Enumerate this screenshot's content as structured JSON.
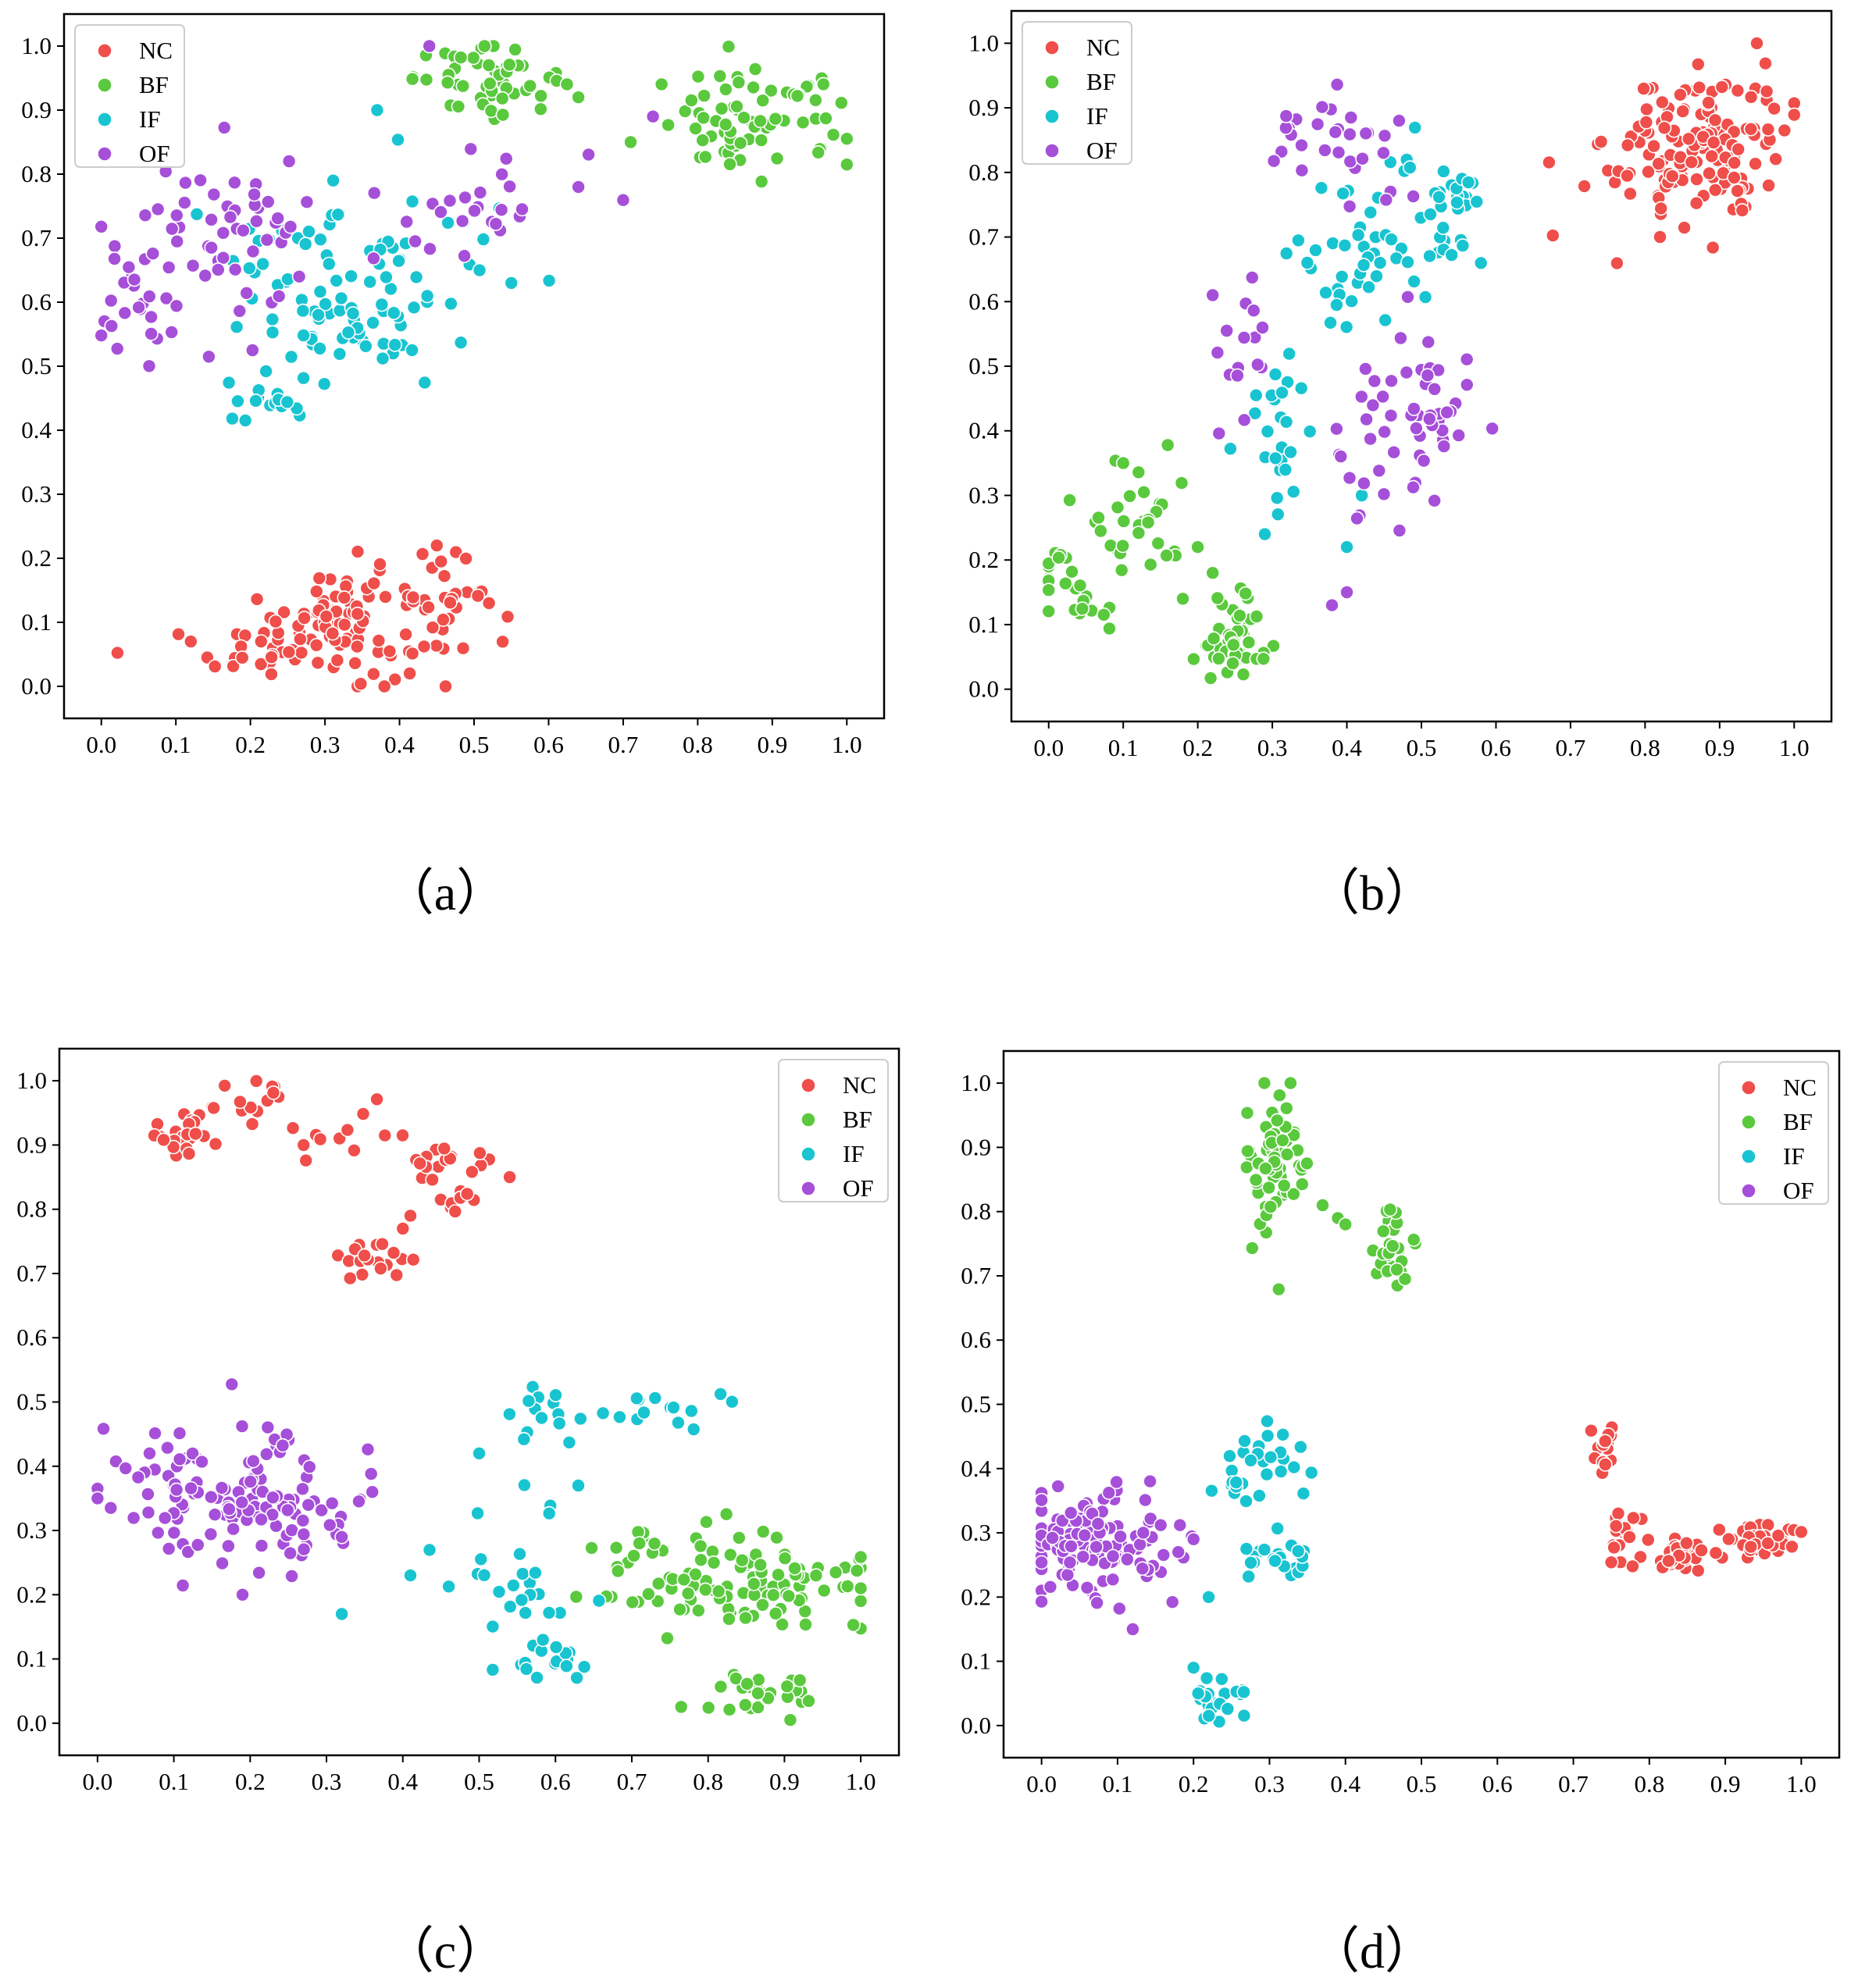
{
  "colors": {
    "NC": "#ef4e4a",
    "BF": "#5ac93d",
    "IF": "#19c4d1",
    "OF": "#a64fd9"
  },
  "chart_data": [
    {
      "id": "a",
      "type": "scatter",
      "caption": "（a）",
      "legend_position": "top-left",
      "xlim": [
        -0.05,
        1.05
      ],
      "ylim": [
        -0.05,
        1.05
      ],
      "xticks": [
        "0.0",
        "0.1",
        "0.2",
        "0.3",
        "0.4",
        "0.5",
        "0.6",
        "0.7",
        "0.8",
        "0.9",
        "1.0"
      ],
      "yticks": [
        "0.0",
        "0.1",
        "0.2",
        "0.3",
        "0.4",
        "0.5",
        "0.6",
        "0.7",
        "0.8",
        "0.9",
        "1.0"
      ],
      "legend": [
        "NC",
        "BF",
        "IF",
        "OF"
      ],
      "series": [
        {
          "name": "NC",
          "clusters": [
            {
              "cx": 0.32,
              "cy": 0.1,
              "sx": 0.09,
              "sy": 0.05,
              "n": 130,
              "rot": 0.35
            },
            {
              "cx": 0.48,
              "cy": 0.13,
              "sx": 0.03,
              "sy": 0.02,
              "n": 10
            }
          ],
          "x": [
            0.12,
            0.52,
            0.45
          ],
          "y": [
            0.07,
            0.13,
            0.22
          ]
        },
        {
          "name": "BF",
          "clusters": [
            {
              "cx": 0.52,
              "cy": 0.95,
              "sx": 0.05,
              "sy": 0.025,
              "n": 50
            },
            {
              "cx": 0.88,
              "cy": 0.88,
              "sx": 0.07,
              "sy": 0.04,
              "n": 70
            }
          ],
          "x": [
            0.71,
            0.64
          ],
          "y": [
            0.85,
            0.92
          ]
        },
        {
          "name": "IF",
          "clusters": [
            {
              "cx": 0.34,
              "cy": 0.63,
              "sx": 0.1,
              "sy": 0.1,
              "n": 100,
              "rot": 0.8
            },
            {
              "cx": 0.22,
              "cy": 0.45,
              "sx": 0.03,
              "sy": 0.02,
              "n": 15
            }
          ],
          "x": [
            0.37,
            0.55
          ],
          "y": [
            0.9,
            0.63
          ]
        },
        {
          "name": "OF",
          "clusters": [
            {
              "cx": 0.03,
              "cy": 0.56,
              "sx": 0.03,
              "sy": 0.03,
              "n": 12
            },
            {
              "cx": 0.15,
              "cy": 0.68,
              "sx": 0.08,
              "sy": 0.08,
              "n": 70
            },
            {
              "cx": 0.5,
              "cy": 0.75,
              "sx": 0.08,
              "sy": 0.06,
              "n": 25
            }
          ],
          "x": [
            0.44,
            0.74,
            0.64
          ],
          "y": [
            1.0,
            0.89,
            0.78
          ]
        }
      ]
    },
    {
      "id": "b",
      "type": "scatter",
      "caption": "（b）",
      "legend_position": "top-left",
      "xlim": [
        -0.05,
        1.05
      ],
      "ylim": [
        -0.05,
        1.05
      ],
      "xticks": [
        "0.0",
        "0.1",
        "0.2",
        "0.3",
        "0.4",
        "0.5",
        "0.6",
        "0.7",
        "0.8",
        "0.9",
        "1.0"
      ],
      "yticks": [
        "0.0",
        "0.1",
        "0.2",
        "0.3",
        "0.4",
        "0.5",
        "0.6",
        "0.7",
        "0.8",
        "0.9",
        "1.0"
      ],
      "legend": [
        "NC",
        "BF",
        "IF",
        "OF"
      ],
      "series": [
        {
          "name": "NC",
          "clusters": [
            {
              "cx": 0.87,
              "cy": 0.84,
              "sx": 0.06,
              "sy": 0.06,
              "n": 150
            }
          ],
          "x": [
            0.95,
            0.82
          ],
          "y": [
            1.0,
            0.7
          ]
        },
        {
          "name": "BF",
          "clusters": [
            {
              "cx": 0.03,
              "cy": 0.16,
              "sx": 0.03,
              "sy": 0.04,
              "n": 25
            },
            {
              "cx": 0.11,
              "cy": 0.27,
              "sx": 0.04,
              "sy": 0.04,
              "n": 30
            },
            {
              "cx": 0.25,
              "cy": 0.08,
              "sx": 0.025,
              "sy": 0.04,
              "n": 50
            }
          ],
          "x": [
            0.18,
            0.2,
            0.22,
            0.1
          ],
          "y": [
            0.14,
            0.22,
            0.18,
            0.35
          ]
        },
        {
          "name": "IF",
          "clusters": [
            {
              "cx": 0.31,
              "cy": 0.38,
              "sx": 0.03,
              "sy": 0.07,
              "n": 25
            },
            {
              "cx": 0.4,
              "cy": 0.67,
              "sx": 0.04,
              "sy": 0.06,
              "n": 30
            },
            {
              "cx": 0.5,
              "cy": 0.72,
              "sx": 0.05,
              "sy": 0.06,
              "n": 35
            },
            {
              "cx": 0.56,
              "cy": 0.78,
              "sx": 0.02,
              "sy": 0.02,
              "n": 10
            }
          ],
          "x": [
            0.4,
            0.42,
            0.29
          ],
          "y": [
            0.22,
            0.3,
            0.24
          ]
        },
        {
          "name": "OF",
          "clusters": [
            {
              "cx": 0.35,
              "cy": 0.86,
              "sx": 0.04,
              "sy": 0.03,
              "n": 18
            },
            {
              "cx": 0.43,
              "cy": 0.82,
              "sx": 0.03,
              "sy": 0.03,
              "n": 12
            },
            {
              "cx": 0.26,
              "cy": 0.52,
              "sx": 0.02,
              "sy": 0.05,
              "n": 15
            },
            {
              "cx": 0.5,
              "cy": 0.45,
              "sx": 0.04,
              "sy": 0.05,
              "n": 45
            },
            {
              "cx": 0.43,
              "cy": 0.33,
              "sx": 0.03,
              "sy": 0.04,
              "n": 12
            }
          ],
          "x": [
            0.22,
            0.47,
            0.38,
            0.4
          ],
          "y": [
            0.61,
            0.88,
            0.13,
            0.15
          ]
        }
      ]
    },
    {
      "id": "c",
      "type": "scatter",
      "caption": "（c）",
      "legend_position": "top-right",
      "xlim": [
        -0.05,
        1.05
      ],
      "ylim": [
        -0.05,
        1.05
      ],
      "xticks": [
        "0.0",
        "0.1",
        "0.2",
        "0.3",
        "0.4",
        "0.5",
        "0.6",
        "0.7",
        "0.8",
        "0.9",
        "1.0"
      ],
      "yticks": [
        "0.0",
        "0.1",
        "0.2",
        "0.3",
        "0.4",
        "0.5",
        "0.6",
        "0.7",
        "0.8",
        "0.9",
        "1.0"
      ],
      "legend": [
        "NC",
        "BF",
        "IF",
        "OF"
      ],
      "series": [
        {
          "name": "NC",
          "clusters": [
            {
              "cx": 0.12,
              "cy": 0.92,
              "sx": 0.03,
              "sy": 0.02,
              "n": 30
            },
            {
              "cx": 0.21,
              "cy": 0.97,
              "sx": 0.03,
              "sy": 0.02,
              "n": 15
            },
            {
              "cx": 0.31,
              "cy": 0.92,
              "sx": 0.03,
              "sy": 0.02,
              "n": 10
            },
            {
              "cx": 0.45,
              "cy": 0.88,
              "sx": 0.04,
              "sy": 0.02,
              "n": 18
            },
            {
              "cx": 0.46,
              "cy": 0.81,
              "sx": 0.015,
              "sy": 0.02,
              "n": 8
            },
            {
              "cx": 0.36,
              "cy": 0.71,
              "sx": 0.04,
              "sy": 0.02,
              "n": 18
            }
          ],
          "x": [
            0.54,
            0.4,
            0.41,
            0.27
          ],
          "y": [
            0.85,
            0.77,
            0.79,
            0.9
          ]
        },
        {
          "name": "BF",
          "clusters": [
            {
              "cx": 0.84,
              "cy": 0.22,
              "sx": 0.09,
              "sy": 0.04,
              "n": 110
            },
            {
              "cx": 0.87,
              "cy": 0.04,
              "sx": 0.04,
              "sy": 0.02,
              "n": 30
            }
          ],
          "x": [
            0.71,
            1.0
          ],
          "y": [
            0.28,
            0.21
          ]
        },
        {
          "name": "IF",
          "clusters": [
            {
              "cx": 0.55,
              "cy": 0.22,
              "sx": 0.05,
              "sy": 0.06,
              "n": 25
            },
            {
              "cx": 0.6,
              "cy": 0.1,
              "sx": 0.03,
              "sy": 0.02,
              "n": 15
            },
            {
              "cx": 0.59,
              "cy": 0.47,
              "sx": 0.03,
              "sy": 0.03,
              "n": 15
            },
            {
              "cx": 0.75,
              "cy": 0.49,
              "sx": 0.04,
              "sy": 0.02,
              "n": 15
            }
          ],
          "x": [
            0.32,
            0.41,
            0.63,
            0.5
          ],
          "y": [
            0.17,
            0.23,
            0.37,
            0.42
          ]
        },
        {
          "name": "OF",
          "clusters": [
            {
              "cx": 0.18,
              "cy": 0.35,
              "sx": 0.08,
              "sy": 0.055,
              "n": 130
            }
          ],
          "x": [
            0.0,
            0.36,
            0.32,
            0.19
          ],
          "y": [
            0.35,
            0.36,
            0.29,
            0.2
          ]
        }
      ]
    },
    {
      "id": "d",
      "type": "scatter",
      "caption": "（d）",
      "legend_position": "top-right",
      "xlim": [
        -0.05,
        1.05
      ],
      "ylim": [
        -0.05,
        1.05
      ],
      "xticks": [
        "0.0",
        "0.1",
        "0.2",
        "0.3",
        "0.4",
        "0.5",
        "0.6",
        "0.7",
        "0.8",
        "0.9",
        "1.0"
      ],
      "yticks": [
        "0.0",
        "0.1",
        "0.2",
        "0.3",
        "0.4",
        "0.5",
        "0.6",
        "0.7",
        "0.8",
        "0.9",
        "1.0"
      ],
      "legend": [
        "NC",
        "BF",
        "IF",
        "OF"
      ],
      "series": [
        {
          "name": "NC",
          "clusters": [
            {
              "cx": 0.74,
              "cy": 0.43,
              "sx": 0.01,
              "sy": 0.02,
              "n": 15
            },
            {
              "cx": 0.76,
              "cy": 0.29,
              "sx": 0.015,
              "sy": 0.025,
              "n": 20
            },
            {
              "cx": 0.84,
              "cy": 0.26,
              "sx": 0.02,
              "sy": 0.015,
              "n": 30
            },
            {
              "cx": 0.95,
              "cy": 0.29,
              "sx": 0.025,
              "sy": 0.015,
              "n": 30
            }
          ],
          "x": [],
          "y": []
        },
        {
          "name": "BF",
          "clusters": [
            {
              "cx": 0.31,
              "cy": 0.88,
              "sx": 0.02,
              "sy": 0.06,
              "n": 60
            },
            {
              "cx": 0.46,
              "cy": 0.74,
              "sx": 0.012,
              "sy": 0.025,
              "n": 30
            }
          ],
          "x": [
            0.37,
            0.39,
            0.4
          ],
          "y": [
            0.81,
            0.79,
            0.78
          ]
        },
        {
          "name": "IF",
          "clusters": [
            {
              "cx": 0.23,
              "cy": 0.04,
              "sx": 0.015,
              "sy": 0.02,
              "n": 25
            },
            {
              "cx": 0.29,
              "cy": 0.4,
              "sx": 0.035,
              "sy": 0.04,
              "n": 30
            },
            {
              "cx": 0.31,
              "cy": 0.26,
              "sx": 0.03,
              "sy": 0.02,
              "n": 20
            }
          ],
          "x": [
            0.2,
            0.22
          ],
          "y": [
            0.09,
            0.2
          ]
        },
        {
          "name": "OF",
          "clusters": [
            {
              "cx": 0.07,
              "cy": 0.28,
              "sx": 0.055,
              "sy": 0.045,
              "n": 120
            }
          ],
          "x": [
            0.2,
            0.18,
            0.12
          ],
          "y": [
            0.29,
            0.27,
            0.15
          ]
        }
      ]
    }
  ]
}
